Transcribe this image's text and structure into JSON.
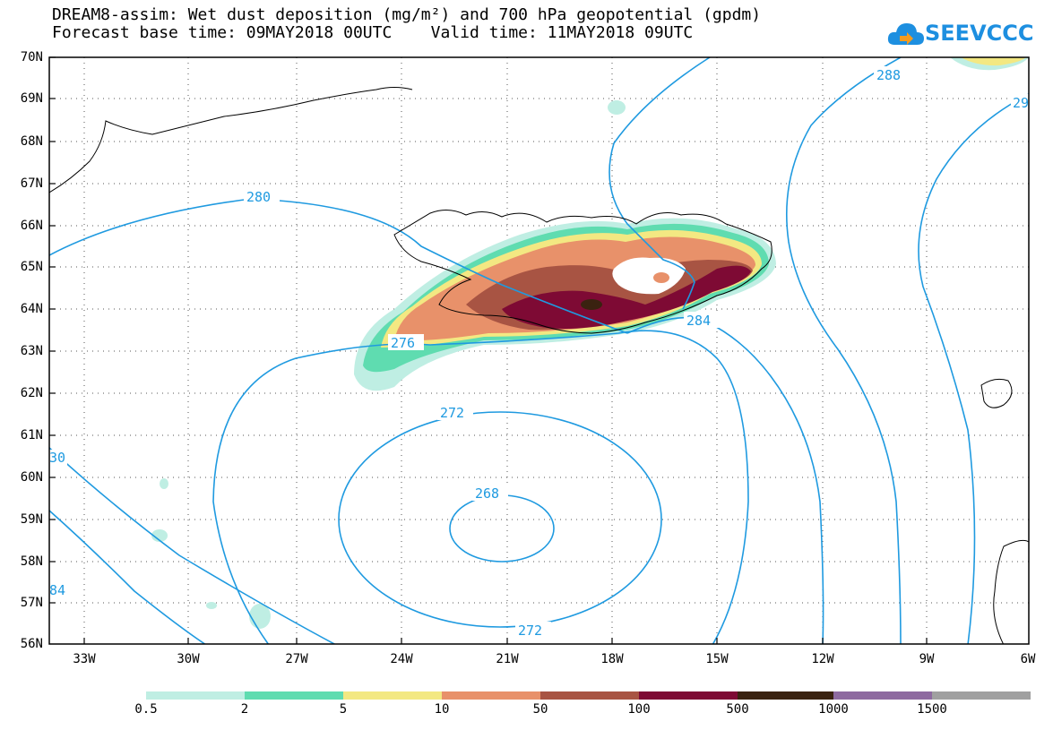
{
  "header": {
    "title_line1": "DREAM8-assim: Wet dust deposition (mg/m²) and 700 hPa geopotential (gpdm)",
    "title_line2": "Forecast base time: 09MAY2018 00UTC    Valid time: 11MAY2018 09UTC",
    "logo_text": "SEEVCCC"
  },
  "axes": {
    "lat_labels": [
      "70N",
      "69N",
      "68N",
      "67N",
      "66N",
      "65N",
      "64N",
      "63N",
      "62N",
      "61N",
      "60N",
      "59N",
      "58N",
      "57N",
      "56N"
    ],
    "lon_labels": [
      "33W",
      "30W",
      "27W",
      "24W",
      "21W",
      "18W",
      "15W",
      "12W",
      "9W",
      "6W"
    ],
    "grid": "dotted"
  },
  "contours": {
    "labels": [
      "280",
      "276",
      "272",
      "268",
      "272",
      "284",
      "288",
      "29",
      "30",
      "84"
    ]
  },
  "legend": {
    "labels": [
      "0.5",
      "2",
      "5",
      "10",
      "50",
      "100",
      "500",
      "1000",
      "1500"
    ],
    "colors": [
      "#bfeee3",
      "#5fdcb0",
      "#f3e882",
      "#e8916a",
      "#a85443",
      "#7e0a34",
      "#3a2210",
      "#8e6aa0",
      "#a0a0a0"
    ]
  },
  "colors": {
    "contour": "#1f9ae0",
    "coast": "#000000"
  }
}
